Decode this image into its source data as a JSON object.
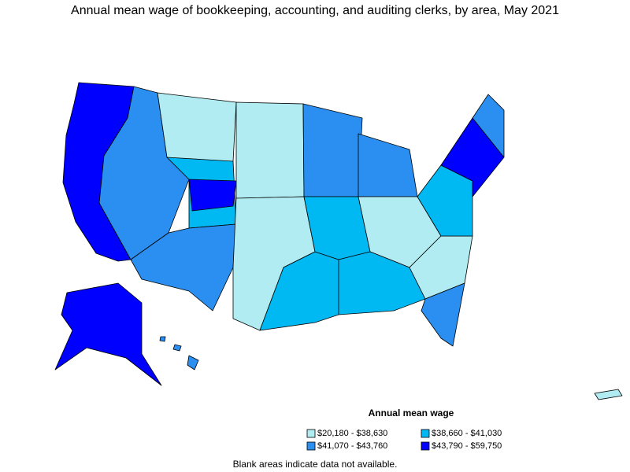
{
  "title": "Annual mean wage of bookkeeping, accounting, and auditing clerks, by area, May 2021",
  "legend": {
    "title": "Annual mean wage",
    "items": [
      {
        "label": "$20,180 - $38,630",
        "color": "#b0ecf2"
      },
      {
        "label": "$38,660 - $41,030",
        "color": "#00b9f2"
      },
      {
        "label": "$41,070 - $43,760",
        "color": "#2a8ff0"
      },
      {
        "label": "$43,790 - $59,750",
        "color": "#0000ff"
      }
    ]
  },
  "footnote": "Blank areas indicate data not available."
}
